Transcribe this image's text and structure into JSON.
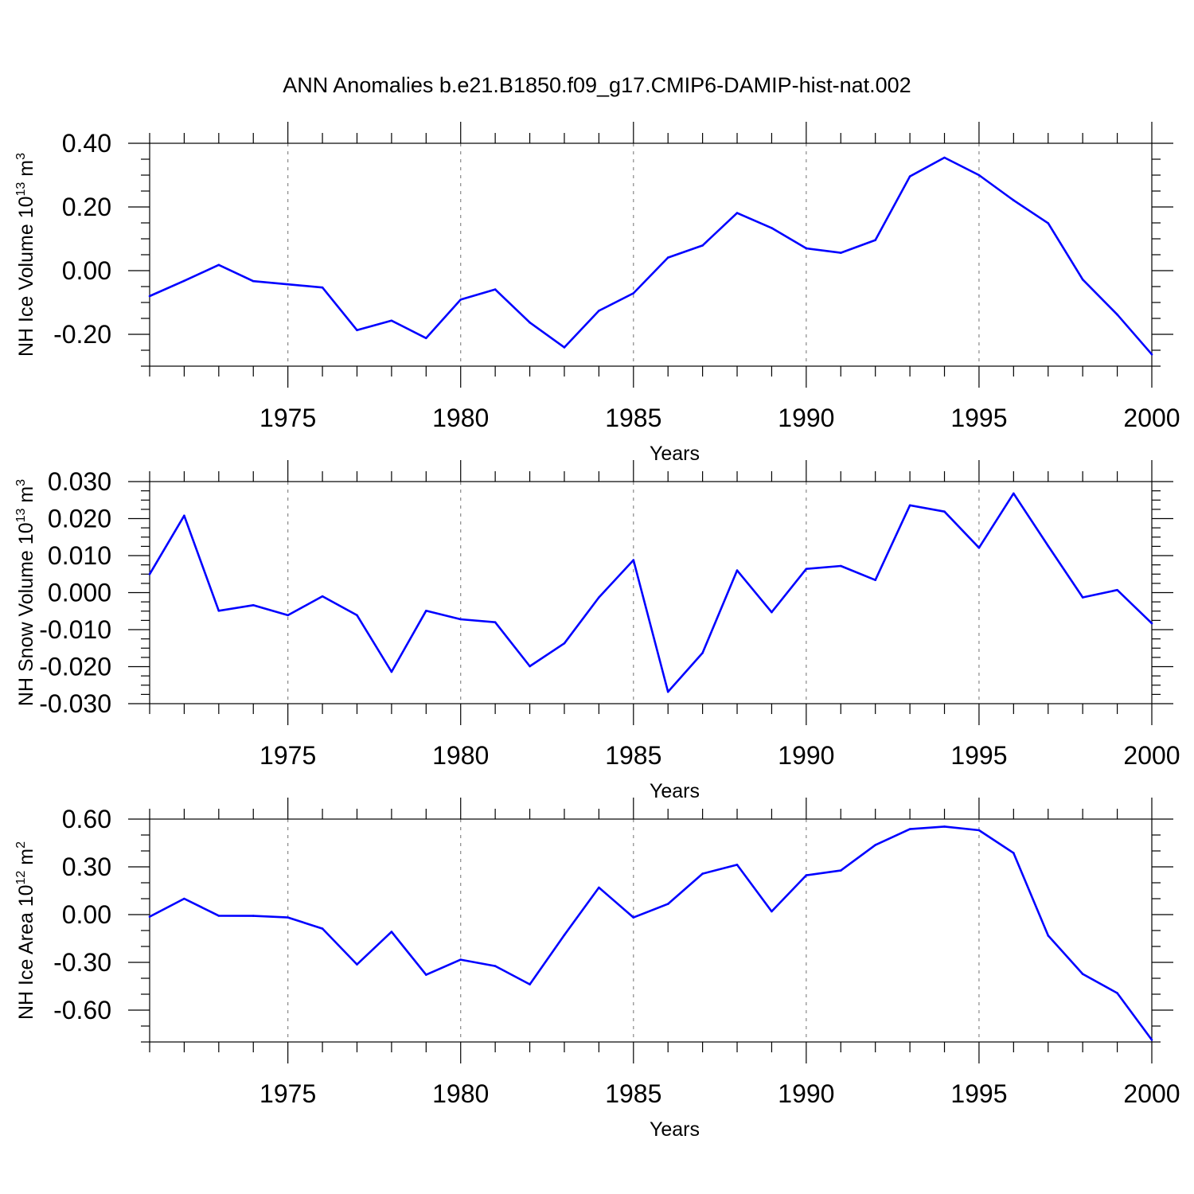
{
  "title": "ANN Anomalies b.e21.B1850.f09_g17.CMIP6-DAMIP-hist-nat.002",
  "colors": {
    "line": "#0000ff",
    "grid": "#888888",
    "axes": "#000000"
  },
  "chart_data": [
    {
      "type": "line",
      "ylabel": "NH Ice Volume",
      "ylabel_unit_base": "10",
      "ylabel_unit_exp": "13",
      "ylabel_unit_suffix": " m",
      "ylabel_unit_power": "3",
      "xlabel": "Years",
      "xlim": [
        1971,
        2000
      ],
      "ylim": [
        -0.3,
        0.4
      ],
      "yticks": [
        0.4,
        0.2,
        0.0,
        -0.2
      ],
      "yticklabels": [
        "0.40",
        "0.20",
        "0.00",
        "-0.20"
      ],
      "yminor_step": 0.05,
      "xticks": [
        1975,
        1980,
        1985,
        1990,
        1995,
        2000
      ],
      "xticklabels": [
        "1975",
        "1980",
        "1985",
        "1990",
        "1995",
        "2000"
      ],
      "x": [
        1971,
        1972,
        1973,
        1974,
        1975,
        1976,
        1977,
        1978,
        1979,
        1980,
        1981,
        1982,
        1983,
        1984,
        1985,
        1986,
        1987,
        1988,
        1989,
        1990,
        1991,
        1992,
        1993,
        1994,
        1995,
        1996,
        1997,
        1998,
        1999,
        2000
      ],
      "values": [
        -0.08,
        -0.032,
        0.018,
        -0.033,
        -0.043,
        -0.053,
        -0.187,
        -0.157,
        -0.212,
        -0.091,
        -0.059,
        -0.163,
        -0.241,
        -0.126,
        -0.071,
        0.041,
        0.079,
        0.181,
        0.134,
        0.07,
        0.056,
        0.096,
        0.296,
        0.355,
        0.3,
        0.221,
        0.149,
        -0.028,
        -0.138,
        -0.263
      ]
    },
    {
      "type": "line",
      "ylabel": "NH Snow Volume",
      "ylabel_unit_base": "10",
      "ylabel_unit_exp": "13",
      "ylabel_unit_suffix": " m",
      "ylabel_unit_power": "3",
      "xlabel": "Years",
      "xlim": [
        1971,
        2000
      ],
      "ylim": [
        -0.03,
        0.03
      ],
      "yticks": [
        0.03,
        0.02,
        0.01,
        0.0,
        -0.01,
        -0.02,
        -0.03
      ],
      "yticklabels": [
        "0.030",
        "0.020",
        "0.010",
        "0.000",
        "-0.010",
        "-0.020",
        "-0.030"
      ],
      "yminor_step": 0.0025,
      "xticks": [
        1975,
        1980,
        1985,
        1990,
        1995,
        2000
      ],
      "xticklabels": [
        "1975",
        "1980",
        "1985",
        "1990",
        "1995",
        "2000"
      ],
      "x": [
        1971,
        1972,
        1973,
        1974,
        1975,
        1976,
        1977,
        1978,
        1979,
        1980,
        1981,
        1982,
        1983,
        1984,
        1985,
        1986,
        1987,
        1988,
        1989,
        1990,
        1991,
        1992,
        1993,
        1994,
        1995,
        1996,
        1997,
        1998,
        1999,
        2000
      ],
      "values": [
        0.005,
        0.0208,
        -0.0049,
        -0.0034,
        -0.0061,
        -0.001,
        -0.0061,
        -0.0214,
        -0.0049,
        -0.0072,
        -0.008,
        -0.0199,
        -0.0137,
        -0.0013,
        0.0088,
        -0.0268,
        -0.0163,
        0.006,
        -0.0053,
        0.0064,
        0.0072,
        0.0034,
        0.0236,
        0.0219,
        0.0121,
        0.0268,
        0.0126,
        -0.0013,
        0.0007,
        -0.0083
      ]
    },
    {
      "type": "line",
      "ylabel": "NH Ice Area",
      "ylabel_unit_base": "10",
      "ylabel_unit_exp": "12",
      "ylabel_unit_suffix": " m",
      "ylabel_unit_power": "2",
      "xlabel": "Years",
      "xlim": [
        1971,
        2000
      ],
      "ylim": [
        -0.8,
        0.6
      ],
      "yticks": [
        0.6,
        0.3,
        0.0,
        -0.3,
        -0.6
      ],
      "yticklabels": [
        "0.60",
        "0.30",
        "0.00",
        "-0.30",
        "-0.60"
      ],
      "yminor_step": 0.1,
      "xticks": [
        1975,
        1980,
        1985,
        1990,
        1995,
        2000
      ],
      "xticklabels": [
        "1975",
        "1980",
        "1985",
        "1990",
        "1995",
        "2000"
      ],
      "x": [
        1971,
        1972,
        1973,
        1974,
        1975,
        1976,
        1977,
        1978,
        1979,
        1980,
        1981,
        1982,
        1983,
        1984,
        1985,
        1986,
        1987,
        1988,
        1989,
        1990,
        1991,
        1992,
        1993,
        1994,
        1995,
        1996,
        1997,
        1998,
        1999,
        2000
      ],
      "values": [
        -0.013,
        0.1,
        -0.007,
        -0.008,
        -0.018,
        -0.088,
        -0.313,
        -0.108,
        -0.378,
        -0.283,
        -0.323,
        -0.438,
        -0.128,
        0.17,
        -0.018,
        0.067,
        0.257,
        0.313,
        0.02,
        0.247,
        0.277,
        0.437,
        0.537,
        0.553,
        0.53,
        0.387,
        -0.132,
        -0.373,
        -0.493,
        -0.787
      ]
    }
  ]
}
